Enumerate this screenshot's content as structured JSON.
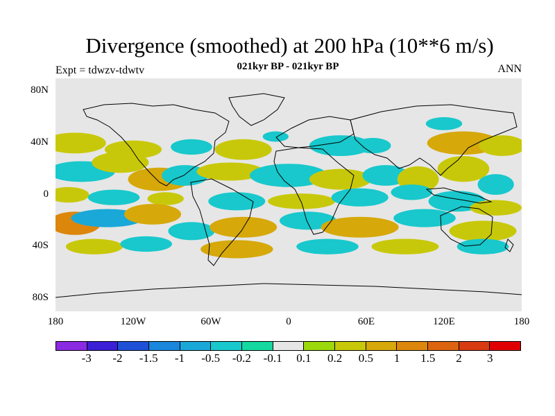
{
  "header": {
    "title": "Divergence (smoothed) at 200 hPa (10**6 m/s)",
    "subtitle": "021kyr BP - 021kyr BP",
    "left_label": "Expt = tdwzv-tdwtv",
    "right_label": "ANN"
  },
  "chart_data": {
    "type": "heatmap",
    "projection": "cylindrical-equidistant",
    "title": "Divergence (smoothed) at 200 hPa (10**6 m/s)",
    "subtitle": "021kyr BP - 021kyr BP",
    "x_tick_labels": [
      "180",
      "120W",
      "60W",
      "0",
      "60E",
      "120E",
      "180"
    ],
    "x_tick_values": [
      -180,
      -120,
      -60,
      0,
      60,
      120,
      180
    ],
    "y_tick_labels": [
      "80N",
      "40N",
      "0",
      "40S",
      "80S"
    ],
    "y_tick_values": [
      80,
      40,
      0,
      -40,
      -80
    ],
    "xlim": [
      -180,
      180
    ],
    "ylim": [
      -90,
      90
    ],
    "colorbar": {
      "boundaries": [
        "-3",
        "-2",
        "-1.5",
        "-1",
        "-0.5",
        "-0.2",
        "-0.1",
        "0.1",
        "0.2",
        "0.5",
        "1",
        "1.5",
        "2",
        "3"
      ],
      "colors": [
        "#8a2be2",
        "#3a1fd6",
        "#1e50d8",
        "#1a86dc",
        "#1aa8d8",
        "#18c8cc",
        "#14d8a0",
        "#e6e6e6",
        "#9bd80c",
        "#c8c80a",
        "#d6a80a",
        "#dc860c",
        "#dc6410",
        "#d83a12",
        "#e00000"
      ]
    },
    "blobs": [
      {
        "lon": -165,
        "lat": 40,
        "w": 24,
        "h": 8,
        "cls": 9
      },
      {
        "lon": -120,
        "lat": 35,
        "w": 22,
        "h": 7,
        "cls": 9
      },
      {
        "lon": -75,
        "lat": 37,
        "w": 16,
        "h": 6,
        "cls": 5
      },
      {
        "lon": -35,
        "lat": 35,
        "w": 22,
        "h": 8,
        "cls": 9
      },
      {
        "lon": 40,
        "lat": 38,
        "w": 24,
        "h": 8,
        "cls": 5
      },
      {
        "lon": 65,
        "lat": 38,
        "w": 14,
        "h": 6,
        "cls": 5
      },
      {
        "lon": 135,
        "lat": 40,
        "w": 28,
        "h": 9,
        "cls": 10
      },
      {
        "lon": 165,
        "lat": 38,
        "w": 18,
        "h": 8,
        "cls": 9
      },
      {
        "lon": -160,
        "lat": 18,
        "w": 26,
        "h": 8,
        "cls": 5
      },
      {
        "lon": -130,
        "lat": 25,
        "w": 22,
        "h": 8,
        "cls": 9
      },
      {
        "lon": -100,
        "lat": 12,
        "w": 24,
        "h": 9,
        "cls": 10
      },
      {
        "lon": -80,
        "lat": 15,
        "w": 18,
        "h": 8,
        "cls": 5
      },
      {
        "lon": -45,
        "lat": 18,
        "w": 26,
        "h": 7,
        "cls": 9
      },
      {
        "lon": 0,
        "lat": 15,
        "w": 30,
        "h": 9,
        "cls": 5
      },
      {
        "lon": 40,
        "lat": 12,
        "w": 24,
        "h": 8,
        "cls": 9
      },
      {
        "lon": 75,
        "lat": 15,
        "w": 18,
        "h": 8,
        "cls": 5
      },
      {
        "lon": 100,
        "lat": 12,
        "w": 16,
        "h": 10,
        "cls": 9
      },
      {
        "lon": 135,
        "lat": 20,
        "w": 20,
        "h": 10,
        "cls": 9
      },
      {
        "lon": 160,
        "lat": 8,
        "w": 14,
        "h": 8,
        "cls": 5
      },
      {
        "lon": -170,
        "lat": 0,
        "w": 16,
        "h": 6,
        "cls": 9
      },
      {
        "lon": -135,
        "lat": -2,
        "w": 20,
        "h": 6,
        "cls": 5
      },
      {
        "lon": -95,
        "lat": -3,
        "w": 14,
        "h": 5,
        "cls": 9
      },
      {
        "lon": -40,
        "lat": -5,
        "w": 22,
        "h": 7,
        "cls": 5
      },
      {
        "lon": 10,
        "lat": -5,
        "w": 26,
        "h": 6,
        "cls": 9
      },
      {
        "lon": 55,
        "lat": -2,
        "w": 22,
        "h": 7,
        "cls": 5
      },
      {
        "lon": 95,
        "lat": 2,
        "w": 16,
        "h": 6,
        "cls": 5
      },
      {
        "lon": 130,
        "lat": -5,
        "w": 22,
        "h": 8,
        "cls": 5
      },
      {
        "lon": 160,
        "lat": -10,
        "w": 20,
        "h": 6,
        "cls": 9
      },
      {
        "lon": -165,
        "lat": -22,
        "w": 20,
        "h": 9,
        "cls": 11
      },
      {
        "lon": -140,
        "lat": -18,
        "w": 28,
        "h": 7,
        "cls": 4
      },
      {
        "lon": -105,
        "lat": -15,
        "w": 22,
        "h": 8,
        "cls": 10
      },
      {
        "lon": -75,
        "lat": -28,
        "w": 18,
        "h": 7,
        "cls": 5
      },
      {
        "lon": -35,
        "lat": -25,
        "w": 26,
        "h": 8,
        "cls": 10
      },
      {
        "lon": 15,
        "lat": -20,
        "w": 22,
        "h": 7,
        "cls": 5
      },
      {
        "lon": 55,
        "lat": -25,
        "w": 30,
        "h": 8,
        "cls": 10
      },
      {
        "lon": 105,
        "lat": -18,
        "w": 24,
        "h": 7,
        "cls": 5
      },
      {
        "lon": 150,
        "lat": -28,
        "w": 26,
        "h": 8,
        "cls": 9
      },
      {
        "lon": -150,
        "lat": -40,
        "w": 22,
        "h": 6,
        "cls": 9
      },
      {
        "lon": -110,
        "lat": -38,
        "w": 20,
        "h": 6,
        "cls": 5
      },
      {
        "lon": -40,
        "lat": -42,
        "w": 28,
        "h": 7,
        "cls": 10
      },
      {
        "lon": 30,
        "lat": -40,
        "w": 24,
        "h": 6,
        "cls": 5
      },
      {
        "lon": 90,
        "lat": -40,
        "w": 26,
        "h": 6,
        "cls": 9
      },
      {
        "lon": 150,
        "lat": -40,
        "w": 20,
        "h": 6,
        "cls": 5
      },
      {
        "lon": -10,
        "lat": 45,
        "w": 10,
        "h": 4,
        "cls": 5
      },
      {
        "lon": 120,
        "lat": 55,
        "w": 14,
        "h": 5,
        "cls": 5
      }
    ]
  }
}
